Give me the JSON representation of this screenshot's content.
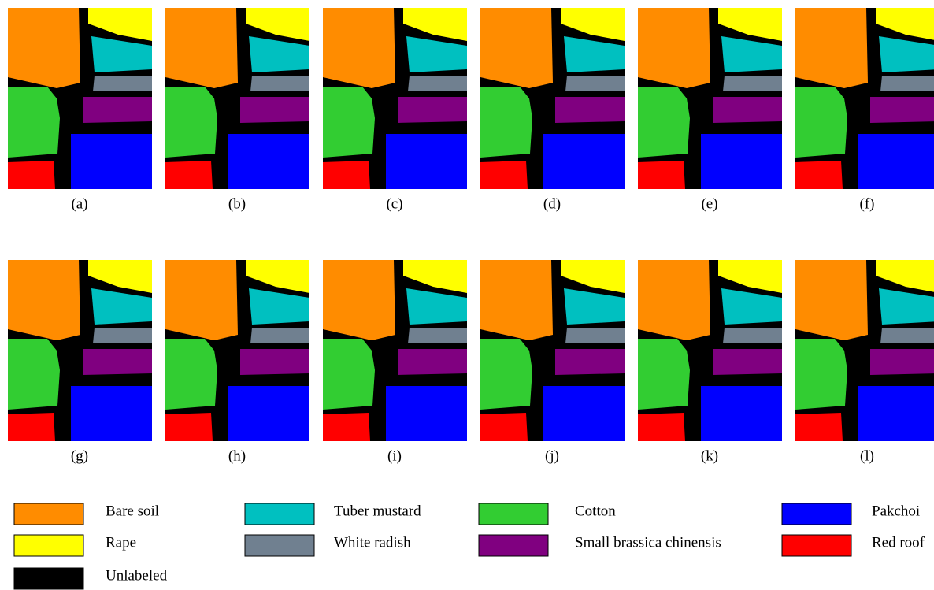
{
  "panel_labels": [
    "(a)",
    "(b)",
    "(c)",
    "(d)",
    "(e)",
    "(f)",
    "(g)",
    "(h)",
    "(i)",
    "(j)",
    "(k)",
    "(l)"
  ],
  "legend": [
    {
      "name": "Bare soil",
      "color": "#ff8c00"
    },
    {
      "name": "Tuber mustard",
      "color": "#00c0c0"
    },
    {
      "name": "Cotton",
      "color": "#32cd32"
    },
    {
      "name": "Pakchoi",
      "color": "#0000ff"
    },
    {
      "name": "Rape",
      "color": "#ffff00"
    },
    {
      "name": "White radish",
      "color": "#708090"
    },
    {
      "name": "Small brassica chinensis",
      "color": "#800080"
    },
    {
      "name": "Red roof",
      "color": "#ff0000"
    },
    {
      "name": "Unlabeled",
      "color": "#000000"
    }
  ]
}
